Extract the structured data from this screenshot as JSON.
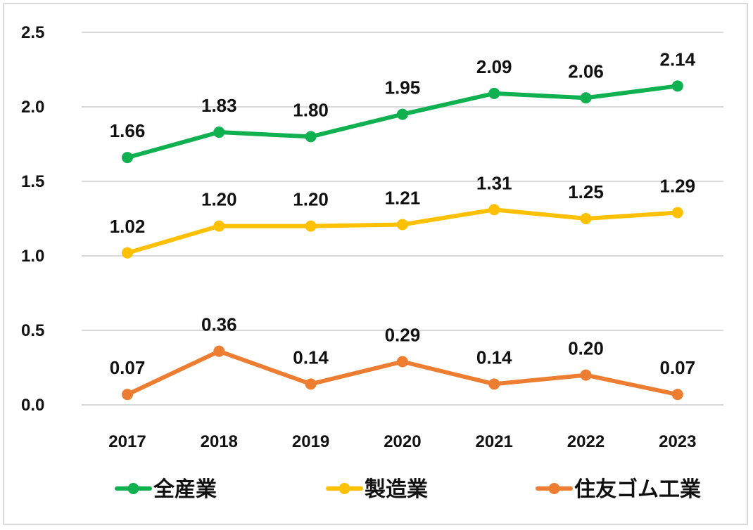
{
  "chart_data": {
    "type": "line",
    "title": "",
    "xlabel": "",
    "ylabel": "",
    "categories": [
      "2017",
      "2018",
      "2019",
      "2020",
      "2021",
      "2022",
      "2023"
    ],
    "ylim": [
      0,
      2.5
    ],
    "yticks": [
      "0.0",
      "0.5",
      "1.0",
      "1.5",
      "2.0",
      "2.5"
    ],
    "grid": true,
    "legend_position": "bottom",
    "series": [
      {
        "name": "全産業",
        "color": "#0fb04f",
        "values": [
          1.66,
          1.83,
          1.8,
          1.95,
          2.09,
          2.06,
          2.14
        ],
        "labels": [
          "1.66",
          "1.83",
          "1.80",
          "1.95",
          "2.09",
          "2.06",
          "2.14"
        ]
      },
      {
        "name": "製造業",
        "color": "#ffc000",
        "values": [
          1.02,
          1.2,
          1.2,
          1.21,
          1.31,
          1.25,
          1.29
        ],
        "labels": [
          "1.02",
          "1.20",
          "1.20",
          "1.21",
          "1.31",
          "1.25",
          "1.29"
        ]
      },
      {
        "name": "住友ゴム工業",
        "color": "#ed7d31",
        "values": [
          0.07,
          0.36,
          0.14,
          0.29,
          0.14,
          0.2,
          0.07
        ],
        "labels": [
          "0.07",
          "0.36",
          "0.14",
          "0.29",
          "0.14",
          "0.20",
          "0.07"
        ]
      }
    ]
  }
}
